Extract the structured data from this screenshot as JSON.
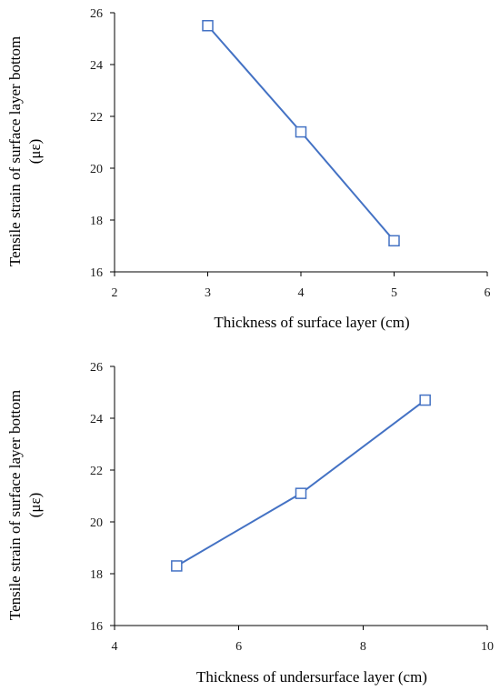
{
  "chart_data": [
    {
      "type": "line",
      "title": "",
      "xlabel": "Thickness of surface layer (cm)",
      "ylabel_line1": "Tensile strain of surface layer bottom",
      "ylabel_line2": "(με)",
      "xlim": [
        2,
        6
      ],
      "ylim": [
        16,
        26
      ],
      "xticks": [
        2,
        3,
        4,
        5,
        6
      ],
      "yticks": [
        16,
        18,
        20,
        22,
        24,
        26
      ],
      "series": [
        {
          "x": [
            3,
            4,
            5
          ],
          "values": [
            25.5,
            21.4,
            17.2
          ],
          "color": "#4472C4",
          "marker": "square"
        }
      ],
      "grid": false,
      "legend": "none"
    },
    {
      "type": "line",
      "title": "",
      "xlabel": "Thickness of undersurface layer (cm)",
      "ylabel_line1": "Tensile strain of surface layer bottom",
      "ylabel_line2": "(με)",
      "xlim": [
        4,
        10
      ],
      "ylim": [
        16,
        26
      ],
      "xticks": [
        4,
        6,
        8,
        10
      ],
      "yticks": [
        16,
        18,
        20,
        22,
        24,
        26
      ],
      "series": [
        {
          "x": [
            5,
            7,
            9
          ],
          "values": [
            18.3,
            21.1,
            24.7
          ],
          "color": "#4472C4",
          "marker": "square"
        }
      ],
      "grid": false,
      "legend": "none"
    }
  ]
}
